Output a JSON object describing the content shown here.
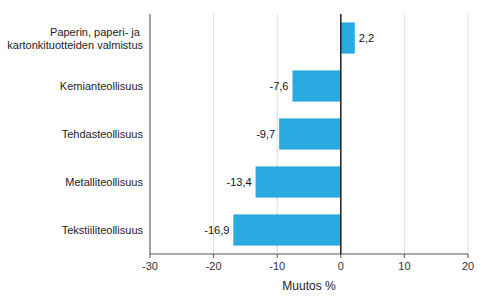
{
  "chart_data": {
    "type": "bar",
    "orientation": "horizontal",
    "categories": [
      "Tekstiiliteollisuus",
      "Metalliteollisuus",
      "Tehdasteollisuus",
      "Kemianteollisuus",
      "Paperin, paperi- ja kartonkituotteiden valmistus"
    ],
    "values": [
      -16.9,
      -13.4,
      -9.7,
      -7.6,
      2.2
    ],
    "value_labels": [
      "-16,9",
      "-13,4",
      "-9,7",
      "-7,6",
      "2,2"
    ],
    "data_labels": true,
    "color": "#29ABE2",
    "xlabel": "Muutos %",
    "xlim": [
      -30,
      20
    ],
    "xticks": [
      -30,
      -20,
      -10,
      0,
      10,
      20
    ],
    "grid": true
  }
}
